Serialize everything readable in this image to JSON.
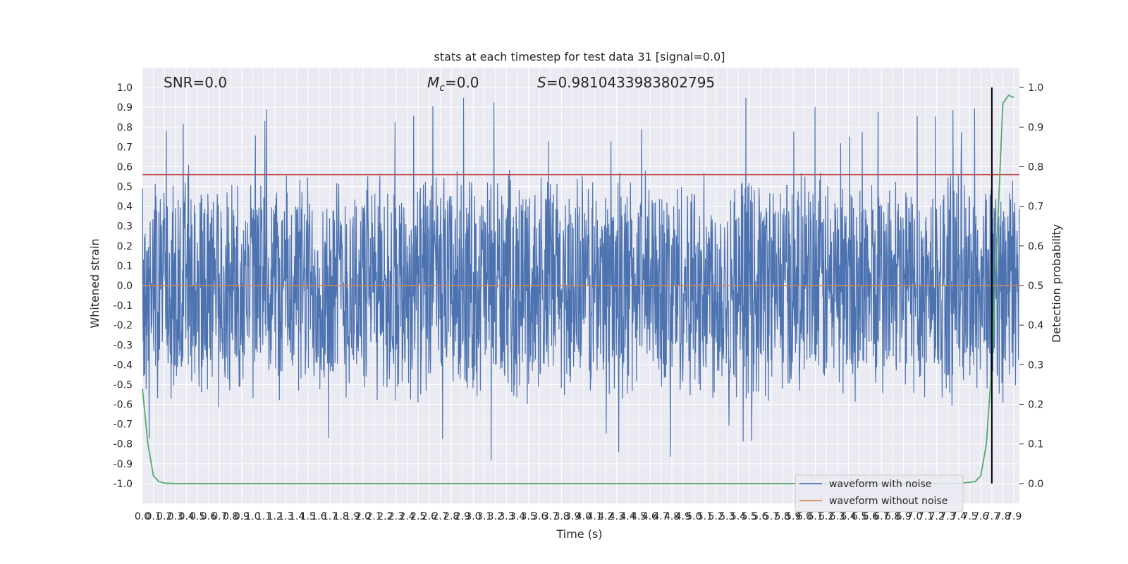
{
  "chart_data": {
    "type": "line",
    "title": "stats at each timestep for test data 31 [signal=0.0]",
    "xlabel": "Time (s)",
    "ylabel": "Whitened strain",
    "y2label": "Detection probability",
    "xlim": [
      0.0,
      7.95
    ],
    "ylim": [
      -1.1,
      1.1
    ],
    "y2lim": [
      -0.05,
      1.05
    ],
    "x_ticks": [
      "0.0",
      "0.1",
      "0.2",
      "0.3",
      "0.4",
      "0.5",
      "0.6",
      "0.7",
      "0.8",
      "0.9",
      "1.0",
      "1.1",
      "1.2",
      "1.3",
      "1.4",
      "1.5",
      "1.6",
      "1.7",
      "1.8",
      "1.9",
      "2.0",
      "2.1",
      "2.2",
      "2.3",
      "2.4",
      "2.5",
      "2.6",
      "2.7",
      "2.8",
      "2.9",
      "3.0",
      "3.1",
      "3.2",
      "3.3",
      "3.4",
      "3.5",
      "3.6",
      "3.7",
      "3.8",
      "3.9",
      "4.0",
      "4.1",
      "4.2",
      "4.3",
      "4.4",
      "4.5",
      "4.6",
      "4.7",
      "4.8",
      "4.9",
      "5.0",
      "5.1",
      "5.2",
      "5.3",
      "5.4",
      "5.5",
      "5.6",
      "5.7",
      "5.8",
      "5.9",
      "6.0",
      "6.1",
      "6.2",
      "6.3",
      "6.4",
      "6.5",
      "6.6",
      "6.7",
      "6.8",
      "6.9",
      "7.0",
      "7.1",
      "7.2",
      "7.3",
      "7.4",
      "7.5",
      "7.6",
      "7.7",
      "7.8",
      "7.9"
    ],
    "y_ticks": [
      "-1.0",
      "-0.9",
      "-0.8",
      "-0.7",
      "-0.6",
      "-0.5",
      "-0.4",
      "-0.3",
      "-0.2",
      "-0.1",
      "0.0",
      "0.1",
      "0.2",
      "0.3",
      "0.4",
      "0.5",
      "0.6",
      "0.7",
      "0.8",
      "0.9",
      "1.0"
    ],
    "y2_ticks": [
      "0.0",
      "0.1",
      "0.2",
      "0.3",
      "0.4",
      "0.5",
      "0.6",
      "0.7",
      "0.8",
      "0.9",
      "1.0"
    ],
    "grid": true,
    "background": "#eaeaf2",
    "annotations": {
      "snr": "SNR=0.0",
      "mc_symbol": "M",
      "mc_sub": "c",
      "mc_value": "=0.0",
      "s_symbol": "S",
      "s_value": "=0.9810433983802795"
    },
    "series": [
      {
        "name": "waveform with noise",
        "color": "#4c72b0",
        "envelope": "noise with amplitude mostly within ±0.5 and spikes to ±0.97"
      },
      {
        "name": "waveform without noise",
        "color": "#dd8452",
        "y": 0.0
      },
      {
        "axis": "y2",
        "color": "#55a868",
        "x": [
          0.0,
          0.05,
          0.1,
          0.15,
          0.2,
          0.3,
          0.5,
          1.0,
          2.0,
          3.0,
          4.0,
          5.0,
          6.0,
          7.0,
          7.4,
          7.55,
          7.6,
          7.65,
          7.7,
          7.73,
          7.76,
          7.8,
          7.85,
          7.9
        ],
        "y": [
          0.24,
          0.1,
          0.02,
          0.005,
          0.001,
          0.0,
          0.0,
          0.0,
          0.0,
          0.0,
          0.0,
          0.0,
          0.0,
          0.0,
          0.0,
          0.005,
          0.02,
          0.1,
          0.3,
          0.5,
          0.7,
          0.96,
          0.98,
          0.975
        ]
      }
    ],
    "threshold_line": {
      "y": 0.78,
      "color": "#c44e52"
    },
    "vertical_marker": {
      "x": 7.7,
      "color": "#000000"
    },
    "legend": {
      "placement": "lower-right",
      "entries": [
        "waveform with noise",
        "waveform without noise"
      ]
    }
  }
}
